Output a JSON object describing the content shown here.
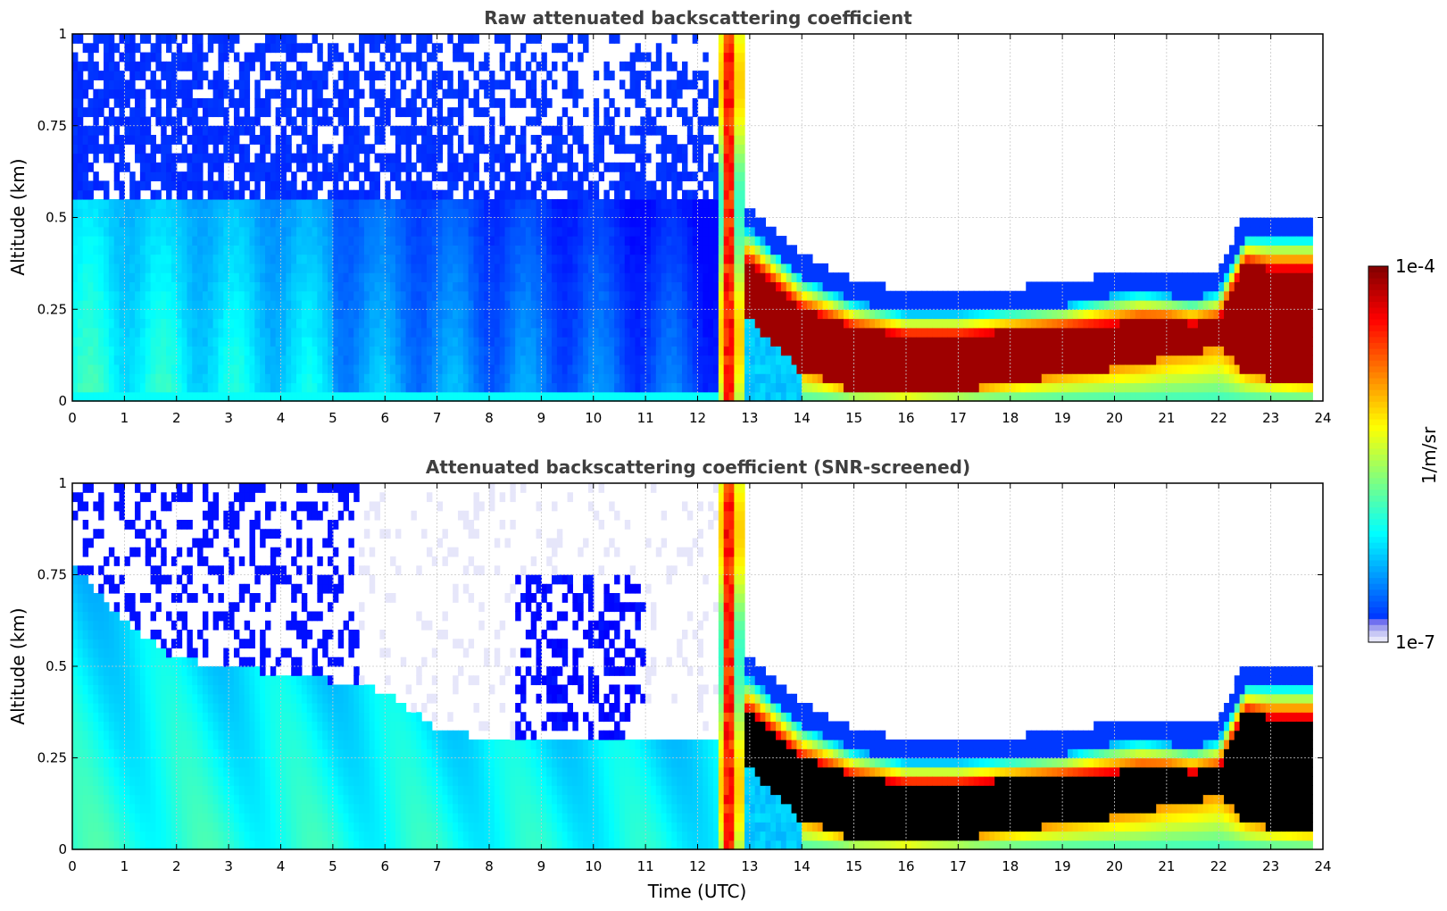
{
  "chart_data": [
    {
      "type": "heatmap",
      "title": "Raw attenuated backscattering coefficient",
      "xlabel": "",
      "ylabel": "Altitude (km)",
      "xlim": [
        0,
        24
      ],
      "ylim": [
        0,
        1
      ],
      "xticks": [
        0,
        1,
        2,
        3,
        4,
        5,
        6,
        7,
        8,
        9,
        10,
        11,
        12,
        13,
        14,
        15,
        16,
        17,
        18,
        19,
        20,
        21,
        22,
        23,
        24
      ],
      "yticks": [
        0,
        0.25,
        0.5,
        0.75,
        1
      ],
      "ytick_labels": [
        "0",
        "0.25",
        "0.5",
        "0.75",
        "1"
      ],
      "grid": true,
      "screened": false,
      "features": {
        "rain_column_time": [
          12.4,
          12.9
        ],
        "fog_layer": {
          "time": [
            13,
            14,
            15,
            16,
            17,
            18,
            19,
            20,
            20.5,
            21,
            21.5,
            22,
            22.5,
            23,
            23.7
          ],
          "top_km": [
            0.47,
            0.34,
            0.27,
            0.24,
            0.24,
            0.25,
            0.26,
            0.29,
            0.3,
            0.29,
            0.28,
            0.3,
            0.45,
            0.45,
            0.45
          ],
          "core_top_km": [
            0.38,
            0.25,
            0.2,
            0.18,
            0.18,
            0.19,
            0.2,
            0.21,
            0.22,
            0.22,
            0.21,
            0.22,
            0.38,
            0.36,
            0.36
          ],
          "core_bottom_km": [
            0.22,
            0.08,
            0.03,
            0.02,
            0.03,
            0.05,
            0.07,
            0.09,
            0.1,
            0.12,
            0.13,
            0.15,
            0.08,
            0.06,
            0.05
          ]
        }
      }
    },
    {
      "type": "heatmap",
      "title": "Attenuated backscattering coefficient (SNR-screened)",
      "xlabel": "Time (UTC)",
      "ylabel": "Altitude (km)",
      "xlim": [
        0,
        24
      ],
      "ylim": [
        0,
        1
      ],
      "xticks": [
        0,
        1,
        2,
        3,
        4,
        5,
        6,
        7,
        8,
        9,
        10,
        11,
        12,
        13,
        14,
        15,
        16,
        17,
        18,
        19,
        20,
        21,
        22,
        23,
        24
      ],
      "yticks": [
        0,
        0.25,
        0.5,
        0.75,
        1
      ],
      "ytick_labels": [
        "0",
        "0.25",
        "0.5",
        "0.75",
        "1"
      ],
      "grid": true,
      "screened": true,
      "features": {
        "rain_column_time": [
          12.4,
          12.9
        ],
        "clear_air_top": {
          "time": [
            0,
            1,
            2,
            3,
            4,
            5,
            6,
            7,
            8,
            9,
            10,
            11,
            12.4
          ],
          "top_km": [
            0.78,
            0.62,
            0.52,
            0.5,
            0.48,
            0.46,
            0.43,
            0.33,
            0.3,
            0.3,
            0.3,
            0.3,
            0.3
          ]
        },
        "saturated_color": "#000000"
      }
    }
  ],
  "colorbar": {
    "label": "1/m/sr",
    "min_label": "1e-7",
    "max_label": "1e-4",
    "scale": "log",
    "colormap": "jet"
  }
}
